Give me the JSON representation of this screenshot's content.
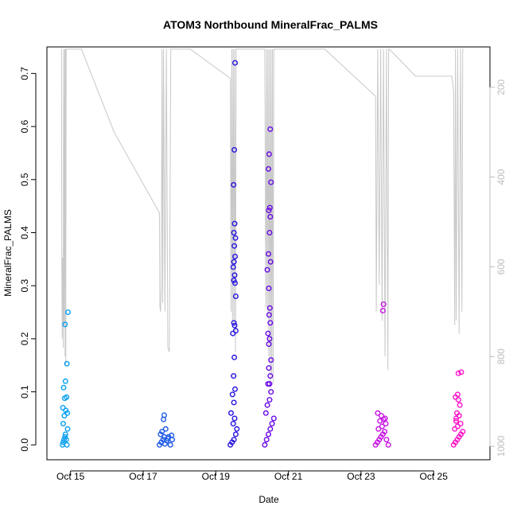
{
  "chart_data": {
    "type": "scatter",
    "title": "ATOM3 Northbound MineralFrac_PALMS",
    "xlabel": "Date",
    "ylabel": "MineralFrac_PALMS",
    "x_ticks": [
      "Oct 15",
      "Oct 17",
      "Oct 19",
      "Oct 21",
      "Oct 23",
      "Oct 25"
    ],
    "x_tick_days": [
      15,
      17,
      19,
      21,
      23,
      25
    ],
    "xlim": [
      14.35,
      26.55
    ],
    "y_ticks": [
      "0.0",
      "0.1",
      "0.2",
      "0.3",
      "0.4",
      "0.5",
      "0.6",
      "0.7"
    ],
    "y_tick_values": [
      0,
      0.1,
      0.2,
      0.3,
      0.4,
      0.5,
      0.6,
      0.7
    ],
    "ylim": [
      -0.028,
      0.75
    ],
    "y2_ticks": [
      "200",
      "400",
      "600",
      "800",
      "1000"
    ],
    "y2_tick_values": [
      200,
      400,
      600,
      800,
      1000
    ],
    "y2lim": [
      1030,
      110
    ],
    "series": [
      {
        "color": "#0aa0f0",
        "x": [
          14.78,
          14.8,
          14.82,
          14.85,
          14.86,
          14.88,
          14.9,
          14.92,
          14.8,
          14.83,
          14.87,
          14.91,
          14.79,
          14.84,
          14.89,
          14.81,
          14.86,
          14.9,
          14.85,
          14.93
        ],
        "y": [
          0.0,
          0.005,
          0.01,
          0.015,
          0.02,
          0.01,
          0.0,
          0.03,
          0.04,
          0.055,
          0.065,
          0.06,
          0.07,
          0.088,
          0.09,
          0.108,
          0.12,
          0.153,
          0.227,
          0.25
        ]
      },
      {
        "color": "#1e5ae6",
        "x": [
          17.45,
          17.5,
          17.55,
          17.6,
          17.65,
          17.7,
          17.75,
          17.8,
          17.48,
          17.58,
          17.68,
          17.78,
          17.52,
          17.62,
          17.56,
          17.58
        ],
        "y": [
          0.0,
          0.005,
          0.01,
          0.002,
          0.008,
          0.015,
          0.0,
          0.01,
          0.02,
          0.015,
          0.012,
          0.018,
          0.025,
          0.03,
          0.048,
          0.056
        ]
      },
      {
        "color": "#2814e0",
        "x": [
          19.4,
          19.45,
          19.5,
          19.55,
          19.58,
          19.48,
          19.52,
          19.42,
          19.5,
          19.46,
          19.53,
          19.49,
          19.51,
          19.47,
          19.52,
          19.5,
          19.55,
          19.53,
          19.5,
          19.52,
          19.48,
          19.5,
          19.53,
          19.51,
          19.54,
          19.5,
          19.52,
          19.49,
          19.51,
          19.53,
          19.55
        ],
        "y": [
          0.0,
          0.005,
          0.01,
          0.02,
          0.03,
          0.04,
          0.05,
          0.06,
          0.08,
          0.095,
          0.105,
          0.13,
          0.165,
          0.21,
          0.225,
          0.23,
          0.28,
          0.305,
          0.31,
          0.32,
          0.335,
          0.345,
          0.355,
          0.375,
          0.39,
          0.4,
          0.417,
          0.49,
          0.556,
          0.72,
          0.215
        ]
      },
      {
        "color": "#6a0ae6",
        "x": [
          20.35,
          20.4,
          20.45,
          20.5,
          20.55,
          20.6,
          20.38,
          20.42,
          20.48,
          20.52,
          20.44,
          20.5,
          20.46,
          20.52,
          20.48,
          20.44,
          20.5,
          20.47,
          20.49,
          20.46,
          20.51,
          20.45,
          20.48,
          20.5,
          20.46,
          20.49,
          20.52,
          20.45,
          20.47,
          20.5,
          20.42,
          20.48,
          20.46
        ],
        "y": [
          0.0,
          0.01,
          0.02,
          0.03,
          0.04,
          0.05,
          0.06,
          0.075,
          0.085,
          0.1,
          0.115,
          0.13,
          0.145,
          0.16,
          0.2,
          0.21,
          0.23,
          0.245,
          0.258,
          0.295,
          0.345,
          0.36,
          0.4,
          0.43,
          0.442,
          0.447,
          0.495,
          0.52,
          0.548,
          0.595,
          0.33,
          0.115,
          0.19
        ]
      },
      {
        "color": "#c814e6",
        "x": [
          23.4,
          23.45,
          23.5,
          23.55,
          23.6,
          23.65,
          23.7,
          23.75,
          23.48,
          23.58,
          23.68,
          23.52,
          23.62,
          23.46,
          23.56,
          23.66,
          23.6,
          23.62
        ],
        "y": [
          0.0,
          0.005,
          0.01,
          0.015,
          0.02,
          0.025,
          0.01,
          0.0,
          0.03,
          0.035,
          0.04,
          0.045,
          0.048,
          0.06,
          0.055,
          0.05,
          0.253,
          0.265
        ]
      },
      {
        "color": "#ff14c8",
        "x": [
          25.55,
          25.6,
          25.65,
          25.7,
          25.75,
          25.8,
          25.58,
          25.66,
          25.74,
          25.62,
          25.7,
          25.64,
          25.72,
          25.6,
          25.68,
          25.66,
          25.68,
          25.76,
          25.62
        ],
        "y": [
          0.0,
          0.005,
          0.01,
          0.015,
          0.02,
          0.025,
          0.03,
          0.035,
          0.04,
          0.05,
          0.055,
          0.06,
          0.075,
          0.09,
          0.085,
          0.095,
          0.135,
          0.137,
          0.045
        ]
      }
    ],
    "altitude_line": {
      "color": "#c8c8c8",
      "x": [
        14.75,
        14.76,
        14.77,
        14.78,
        14.79,
        14.8,
        14.81,
        14.82,
        14.84,
        14.85,
        14.86,
        14.87,
        14.88,
        14.89,
        14.9,
        14.92,
        15.05,
        15.3,
        16.2,
        17.45,
        17.46,
        17.48,
        17.5,
        17.52,
        17.54,
        17.56,
        17.6,
        17.64,
        17.68,
        17.72,
        17.76,
        17.78,
        17.8,
        18.3,
        19.4,
        19.42,
        19.44,
        19.46,
        19.48,
        19.5,
        19.52,
        19.54,
        19.56,
        19.58,
        19.6,
        19.8,
        20.0,
        20.2,
        20.35,
        20.38,
        20.4,
        20.42,
        20.44,
        20.46,
        20.48,
        20.5,
        20.52,
        20.54,
        20.56,
        20.58,
        20.6,
        21.0,
        22.0,
        23.4,
        23.42,
        23.46,
        23.5,
        23.54,
        23.58,
        23.62,
        23.66,
        23.7,
        23.74,
        23.76,
        23.78,
        24.5,
        25.5,
        25.55,
        25.58,
        25.6,
        25.62,
        25.66,
        25.7,
        25.74,
        25.78,
        25.8,
        25.82
      ],
      "y": [
        115,
        590,
        760,
        580,
        620,
        780,
        115,
        730,
        115,
        800,
        115,
        820,
        115,
        115,
        115,
        115,
        115,
        115,
        300,
        480,
        690,
        700,
        640,
        115,
        680,
        115,
        700,
        115,
        780,
        790,
        115,
        115,
        115,
        115,
        180,
        700,
        115,
        720,
        115,
        730,
        115,
        790,
        115,
        115,
        115,
        115,
        115,
        115,
        115,
        690,
        115,
        710,
        115,
        800,
        115,
        870,
        115,
        840,
        115,
        860,
        115,
        115,
        115,
        220,
        700,
        115,
        640,
        115,
        720,
        115,
        800,
        115,
        830,
        115,
        115,
        175,
        175,
        210,
        730,
        115,
        720,
        115,
        750,
        115,
        700,
        115,
        115
      ]
    }
  }
}
